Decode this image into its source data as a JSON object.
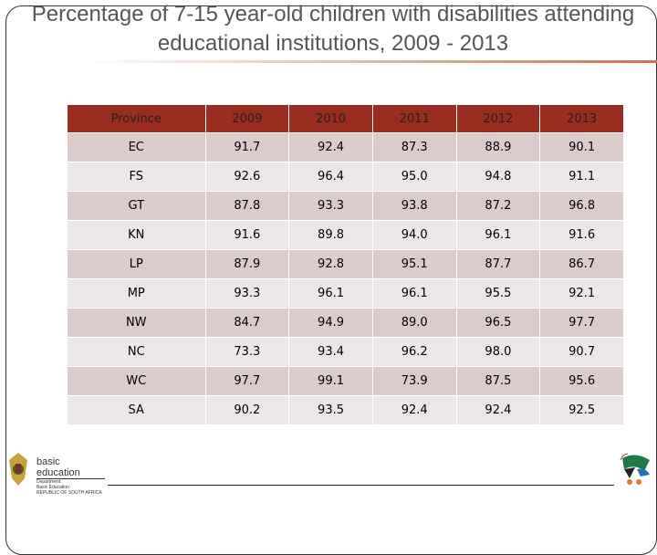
{
  "title": "Percentage of 7-15 year-old children with disabilities attending educational institutions, 2009 - 2013",
  "table": {
    "headers": [
      "Province",
      "2009",
      "2010",
      "2011",
      "2012",
      "2013"
    ],
    "rows": [
      [
        "EC",
        "91.7",
        "92.4",
        "87.3",
        "88.9",
        "90.1"
      ],
      [
        "FS",
        "92.6",
        "96.4",
        "95.0",
        "94.8",
        "91.1"
      ],
      [
        "GT",
        "87.8",
        "93.3",
        "93.8",
        "87.2",
        "96.8"
      ],
      [
        "KN",
        "91.6",
        "89.8",
        "94.0",
        "96.1",
        "91.6"
      ],
      [
        "LP",
        "87.9",
        "92.8",
        "95.1",
        "87.7",
        "86.7"
      ],
      [
        "MP",
        "93.3",
        "96.1",
        "96.1",
        "95.5",
        "92.1"
      ],
      [
        "NW",
        "84.7",
        "94.9",
        "89.0",
        "96.5",
        "97.7"
      ],
      [
        "NC",
        "73.3",
        "93.4",
        "96.2",
        "98.0",
        "90.7"
      ],
      [
        "WC",
        "97.7",
        "99.1",
        "73.9",
        "87.5",
        "95.6"
      ],
      [
        "SA",
        "90.2",
        "93.5",
        "92.4",
        "92.4",
        "92.5"
      ]
    ]
  },
  "footer": {
    "logo_main": "basic education",
    "logo_sub": [
      "Department:",
      "Basic Education",
      "REPUBLIC OF SOUTH AFRICA"
    ]
  },
  "colors": {
    "header": "#9b2d20",
    "row_odd": "#dccbcb",
    "row_even": "#ede6e6",
    "accent": "#c8734a"
  }
}
